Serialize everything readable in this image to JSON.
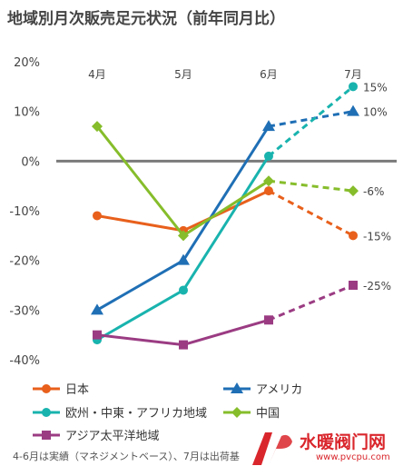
{
  "title": "地域別月次販売足元状況（前年同月比）",
  "footnote": "4-6月は実績（マネジメントベース）、7月は出荷基",
  "watermark": {
    "name": "水暖阀门网",
    "url": "www.pvcpu.com",
    "color": "#d9262c"
  },
  "chart_data": {
    "type": "line",
    "categories": [
      "4月",
      "5月",
      "6月",
      "7月"
    ],
    "ylim": [
      -40,
      20
    ],
    "yticks": [
      "20%",
      "10%",
      "0%",
      "-10%",
      "-20%",
      "-30%",
      "-40%"
    ],
    "ytick_values": [
      20,
      10,
      0,
      -10,
      -20,
      -30,
      -40
    ],
    "actual_through_index": 2,
    "series": [
      {
        "name": "日本",
        "color": "#e8601c",
        "marker": "circle",
        "values": [
          -11,
          -14,
          -6,
          -15
        ],
        "end_label": "-15%"
      },
      {
        "name": "アメリカ",
        "color": "#1f6fb5",
        "marker": "triangle",
        "values": [
          -30,
          -20,
          7,
          10
        ],
        "end_label": "10%"
      },
      {
        "name": "欧州・中東・アフリカ地域",
        "color": "#19b3ae",
        "marker": "circle",
        "values": [
          -36,
          -26,
          1,
          15
        ],
        "end_label": "15%"
      },
      {
        "name": "中国",
        "color": "#86bd2b",
        "marker": "diamond",
        "values": [
          7,
          -15,
          -4,
          -6
        ],
        "end_label": "-6%"
      },
      {
        "name": "アジア太平洋地域",
        "color": "#9b3c83",
        "marker": "square",
        "values": [
          -35,
          -37,
          -32,
          -25
        ],
        "end_label": "-25%"
      }
    ],
    "legend_position": "bottom",
    "grid": false
  }
}
